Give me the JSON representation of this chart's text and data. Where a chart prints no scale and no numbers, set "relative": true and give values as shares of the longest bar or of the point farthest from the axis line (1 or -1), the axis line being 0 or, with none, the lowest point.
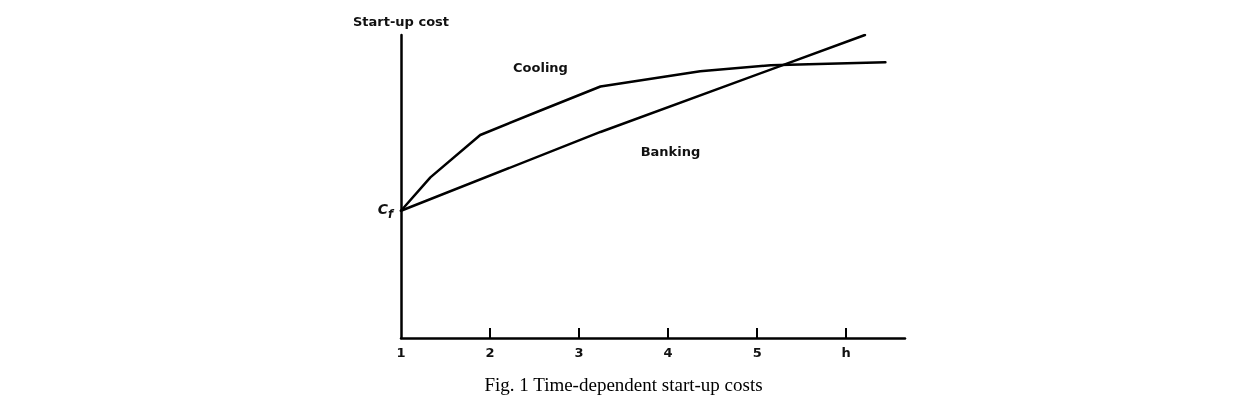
{
  "chart_data": {
    "type": "line",
    "title": "Fig. 1 Time-dependent start-up costs",
    "ylabel": "Start-up cost",
    "relative": true,
    "xlim": [
      1,
      6.66
    ],
    "xticks": [
      1,
      2,
      3,
      4,
      5,
      {
        "value": 6,
        "label": "h"
      }
    ],
    "series": [
      {
        "name": "Cooling",
        "color": "#000000",
        "x": [
          1,
          1.33,
          1.89,
          2.56,
          3.24,
          4.36,
          5.15,
          6.44
        ],
        "values": [
          0.42,
          0.53,
          0.67,
          0.75,
          0.83,
          0.88,
          0.9,
          0.91
        ]
      },
      {
        "name": "Banking",
        "color": "#000000",
        "x": [
          1,
          3.24,
          6.21
        ],
        "values": [
          0.42,
          0.68,
          1
        ]
      }
    ],
    "annotations": [
      {
        "text": "C$_{f}$",
        "x": 1,
        "y": 0.42
      }
    ],
    "grid": false,
    "legend": false,
    "marker": "none",
    "line_style": "solid"
  }
}
